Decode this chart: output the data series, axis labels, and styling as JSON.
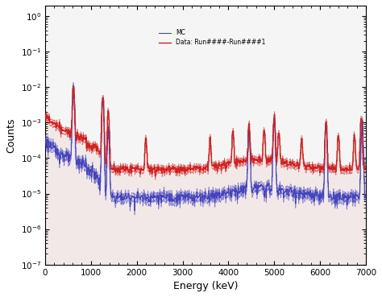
{
  "title": "",
  "xlabel": "Energy (keV)",
  "ylabel": "Counts",
  "xlim": [
    0,
    7000
  ],
  "ylim": [
    1e-07,
    2
  ],
  "legend_mc": "MC",
  "legend_data": "Data: Run####-Run####1",
  "mc_color": "#4444bb",
  "data_color": "#cc2222",
  "background_color": "#ffffff",
  "figsize": [
    4.74,
    3.69
  ],
  "dpi": 100,
  "n_bins": 700
}
